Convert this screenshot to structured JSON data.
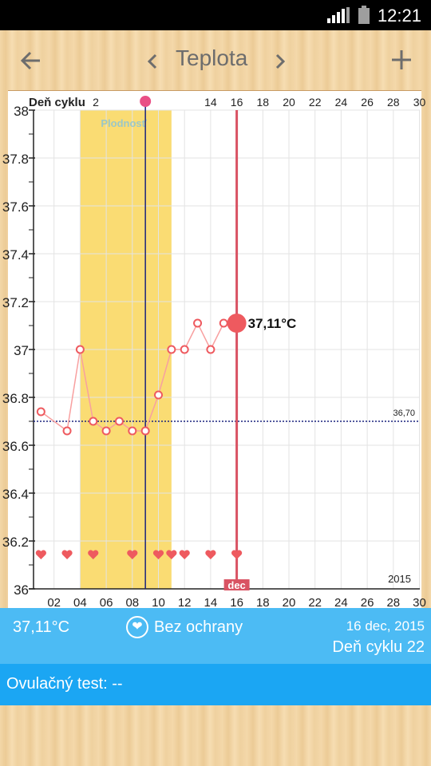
{
  "status": {
    "time": "12:21"
  },
  "toolbar": {
    "title": "Teplota",
    "back_icon": "arrow-left-icon",
    "prev_icon": "chevron-left-icon",
    "next_icon": "chevron-right-icon",
    "add_icon": "plus-icon"
  },
  "chart_data": {
    "type": "line",
    "ylim": [
      36.0,
      38.0
    ],
    "y_ticks": [
      "36",
      "36.2",
      "36.4",
      "36.6",
      "36.8",
      "37",
      "37.2",
      "37.4",
      "37.6",
      "37.8",
      "38"
    ],
    "x_ticks": [
      "02",
      "04",
      "06",
      "08",
      "10",
      "12",
      "14",
      "16",
      "18",
      "20",
      "22",
      "24",
      "26",
      "28",
      "30"
    ],
    "top_axis_label": "Deň cyklu",
    "top_ticks": [
      "2",
      "14",
      "16",
      "18",
      "20",
      "22",
      "24",
      "26",
      "28",
      "30"
    ],
    "fertile_label": "Plodnosť",
    "coverline_label": "36,70",
    "coverline": 36.7,
    "year_label": "2015",
    "month_label": "dec",
    "current_label": "37,11°C",
    "series": [
      {
        "x": [
          1,
          3,
          4,
          5,
          6,
          7,
          8,
          9,
          10,
          11,
          12,
          13,
          14,
          15,
          16
        ],
        "values": [
          36.74,
          36.66,
          37.0,
          36.7,
          36.66,
          36.7,
          36.66,
          36.66,
          36.81,
          37.0,
          37.0,
          37.11,
          37.0,
          37.11,
          37.11
        ]
      }
    ],
    "heart_days": [
      1,
      3,
      5,
      8,
      10,
      11,
      12,
      14,
      16
    ],
    "fertile_range": [
      4,
      11
    ],
    "ovulation_day": 9,
    "current_day": 16,
    "colors": {
      "fertile": "#fadc73",
      "line": "#f8a0a0",
      "marker": "#ee5a5f",
      "current": "#d95363",
      "ovulation": "#1a237e",
      "coverline": "#1a237e"
    }
  },
  "info": {
    "temperature": "37,11°C",
    "protection": "Bez ochrany",
    "date": "16 dec, 2015",
    "cycle_day": "Deň cyklu 22",
    "heart_icon": "heart-circle-icon"
  },
  "ovulation_test": {
    "label": "Ovulačný test: --"
  }
}
